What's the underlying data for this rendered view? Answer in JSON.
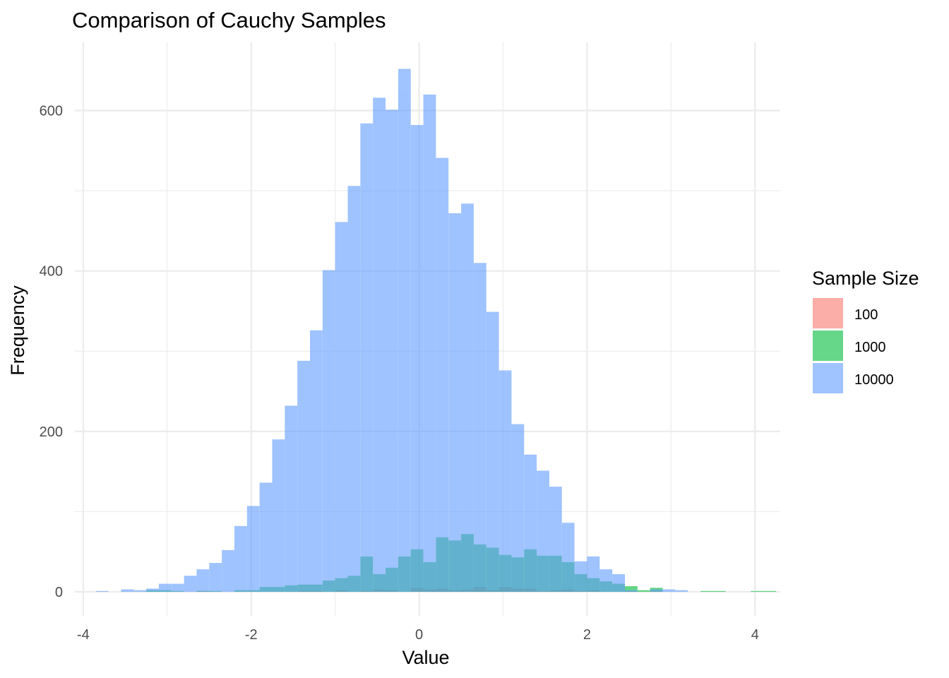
{
  "chart_data": {
    "type": "histogram",
    "title": "Comparison of Cauchy Samples",
    "xlabel": "Value",
    "ylabel": "Frequency",
    "xlim": [
      -4.1,
      4.3
    ],
    "ylim": [
      -30,
      685
    ],
    "x_ticks": [
      -4,
      -2,
      0,
      2,
      4
    ],
    "y_ticks": [
      0,
      200,
      400,
      600
    ],
    "x_tick_labels": [
      "-4",
      "-2",
      "0",
      "2",
      "4"
    ],
    "y_tick_labels": [
      "0",
      "200",
      "400",
      "600"
    ],
    "grid": true,
    "legend_position": "right",
    "legend_title": "Sample Size",
    "bins": {
      "start": -3.85,
      "width": 0.15,
      "count": 54
    },
    "series": [
      {
        "name": "100",
        "color": "#F8766D",
        "values": [
          0,
          0,
          0,
          0,
          0,
          0,
          0,
          0,
          1,
          0,
          0,
          0,
          0,
          0,
          0,
          0,
          1,
          1,
          0,
          2,
          0,
          1,
          3,
          2,
          0,
          5,
          3,
          4,
          2,
          3,
          6,
          2,
          6,
          4,
          4,
          1,
          2,
          3,
          1,
          2,
          0,
          0,
          1,
          0,
          1,
          0,
          0,
          0,
          0,
          0,
          0,
          0,
          0,
          0
        ]
      },
      {
        "name": "1000",
        "color": "#00BA38",
        "values": [
          0,
          0,
          0,
          0,
          2,
          2,
          1,
          0,
          1,
          1,
          0,
          2,
          2,
          6,
          6,
          8,
          9,
          9,
          14,
          17,
          20,
          44,
          22,
          30,
          44,
          53,
          37,
          68,
          64,
          72,
          59,
          55,
          46,
          43,
          53,
          45,
          45,
          37,
          22,
          17,
          13,
          10,
          7,
          2,
          5,
          0,
          0,
          0,
          1,
          1,
          0,
          0,
          1,
          1
        ]
      },
      {
        "name": "10000",
        "color": "#619CFF",
        "values": [
          1,
          0,
          3,
          2,
          4,
          10,
          10,
          20,
          28,
          36,
          52,
          82,
          107,
          136,
          190,
          232,
          288,
          326,
          401,
          461,
          506,
          584,
          616,
          601,
          652,
          582,
          620,
          541,
          472,
          484,
          410,
          349,
          276,
          209,
          171,
          151,
          131,
          86,
          38,
          44,
          28,
          22,
          2,
          0,
          3,
          3,
          2,
          0,
          0,
          0,
          0,
          0,
          0,
          0
        ]
      }
    ]
  }
}
